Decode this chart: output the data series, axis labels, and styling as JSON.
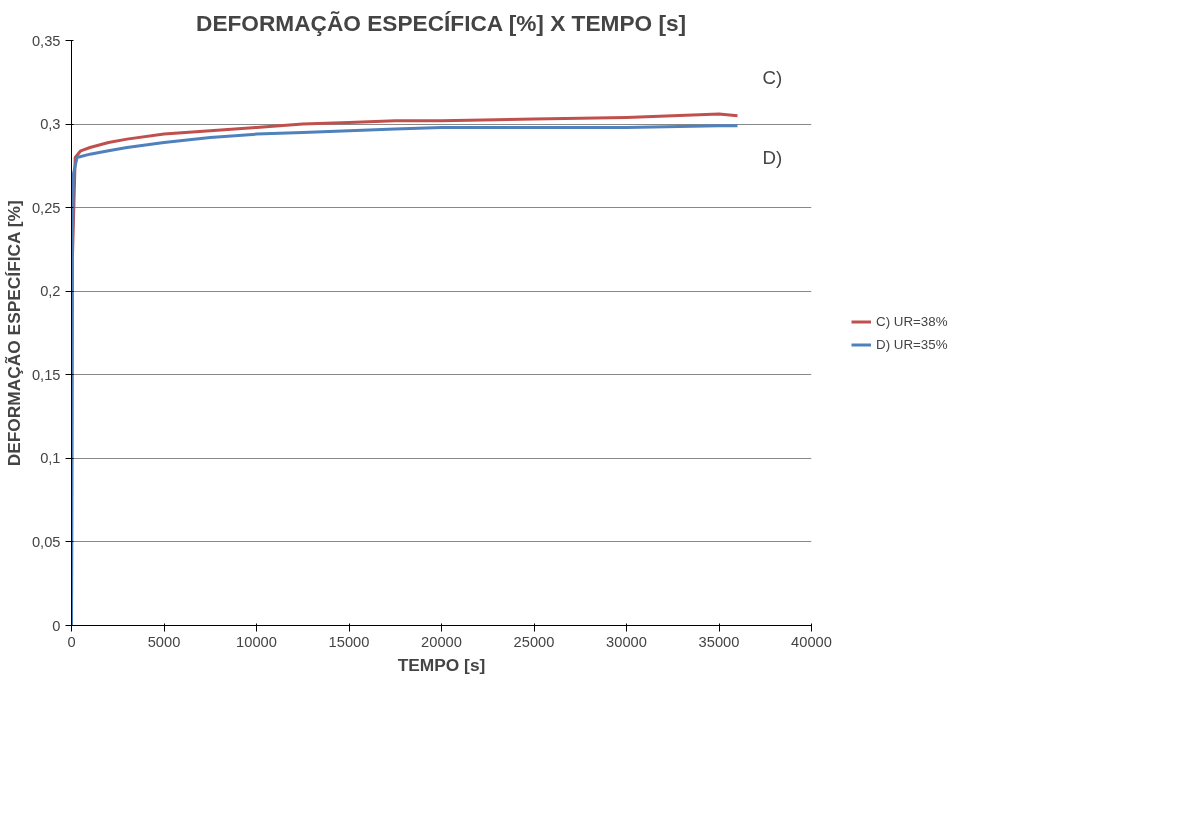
{
  "chart_data": {
    "type": "line",
    "title": "DEFORMAÇÃO ESPECÍFICA [%] X TEMPO [s]",
    "xlabel": "TEMPO [s]",
    "ylabel": "DEFORMAÇÃO ESPECÍFICA [%]",
    "xlim": [
      0,
      40000
    ],
    "xticks": [
      0,
      5000,
      10000,
      15000,
      20000,
      25000,
      30000,
      35000,
      40000
    ],
    "ylim": [
      0,
      0.35
    ],
    "yticks": [
      0,
      {
        "value": 0.05,
        "label": "0,05"
      },
      {
        "value": 0.1,
        "label": "0,1"
      },
      {
        "value": 0.15,
        "label": "0,15"
      },
      {
        "value": 0.2,
        "label": "0,2"
      },
      {
        "value": 0.25,
        "label": "0,25"
      },
      {
        "value": 0.3,
        "label": "0,3"
      },
      {
        "value": 0.35,
        "label": "0,35"
      }
    ],
    "grid": "y",
    "legend": "right",
    "marker": "none",
    "line_style": "solid",
    "annotations": [
      "C)",
      "D)"
    ],
    "series": [
      {
        "name": "C) UR=38%",
        "color": "#c0504d",
        "x": [
          0,
          50,
          200,
          500,
          1000,
          2000,
          3000,
          5000,
          7500,
          10000,
          12500,
          15000,
          17500,
          20000,
          25000,
          30000,
          35000,
          36000
        ],
        "values": [
          0,
          0.22,
          0.28,
          0.284,
          0.286,
          0.289,
          0.291,
          0.294,
          0.296,
          0.298,
          0.3,
          0.301,
          0.302,
          0.302,
          0.303,
          0.304,
          0.306,
          0.305
        ]
      },
      {
        "name": "D) UR=35%",
        "color": "#4f81bd",
        "x": [
          0,
          30,
          100,
          300,
          1000,
          2000,
          3000,
          5000,
          7500,
          10000,
          12500,
          15000,
          17500,
          20000,
          25000,
          30000,
          35000,
          36000
        ],
        "values": [
          0,
          0.215,
          0.27,
          0.28,
          0.282,
          0.284,
          0.286,
          0.289,
          0.292,
          0.294,
          0.295,
          0.296,
          0.297,
          0.298,
          0.298,
          0.298,
          0.299,
          0.299
        ]
      }
    ]
  }
}
